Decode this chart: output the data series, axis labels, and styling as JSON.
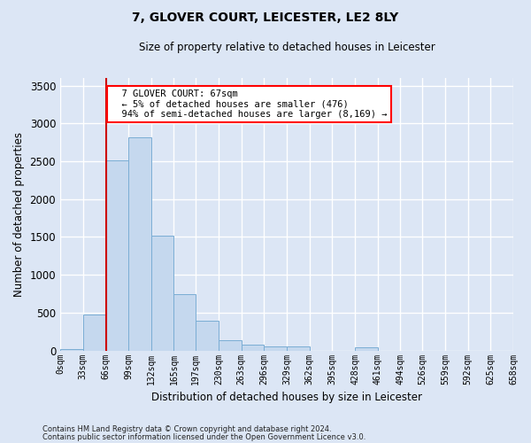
{
  "title": "7, GLOVER COURT, LEICESTER, LE2 8LY",
  "subtitle": "Size of property relative to detached houses in Leicester",
  "xlabel": "Distribution of detached houses by size in Leicester",
  "ylabel": "Number of detached properties",
  "bar_color": "#c5d8ee",
  "bar_edge_color": "#7aadd4",
  "background_color": "#dce6f5",
  "fig_background_color": "#dce6f5",
  "grid_color": "#ffffff",
  "vline_x": 67,
  "vline_color": "#cc0000",
  "bin_edges": [
    0,
    33,
    66,
    99,
    132,
    165,
    197,
    230,
    263,
    296,
    329,
    362,
    395,
    428,
    461,
    494,
    526,
    559,
    592,
    625,
    658
  ],
  "bin_labels": [
    "0sqm",
    "33sqm",
    "66sqm",
    "99sqm",
    "132sqm",
    "165sqm",
    "197sqm",
    "230sqm",
    "263sqm",
    "296sqm",
    "329sqm",
    "362sqm",
    "395sqm",
    "428sqm",
    "461sqm",
    "494sqm",
    "526sqm",
    "559sqm",
    "592sqm",
    "625sqm",
    "658sqm"
  ],
  "bar_heights": [
    20,
    470,
    2510,
    2820,
    1520,
    740,
    390,
    140,
    75,
    55,
    55,
    0,
    0,
    45,
    0,
    0,
    0,
    0,
    0,
    0
  ],
  "ylim": [
    0,
    3600
  ],
  "annotation_text_line1": "7 GLOVER COURT: 67sqm",
  "annotation_text_line2": "← 5% of detached houses are smaller (476)",
  "annotation_text_line3": "94% of semi-detached houses are larger (8,169) →",
  "footer_line1": "Contains HM Land Registry data © Crown copyright and database right 2024.",
  "footer_line2": "Contains public sector information licensed under the Open Government Licence v3.0."
}
